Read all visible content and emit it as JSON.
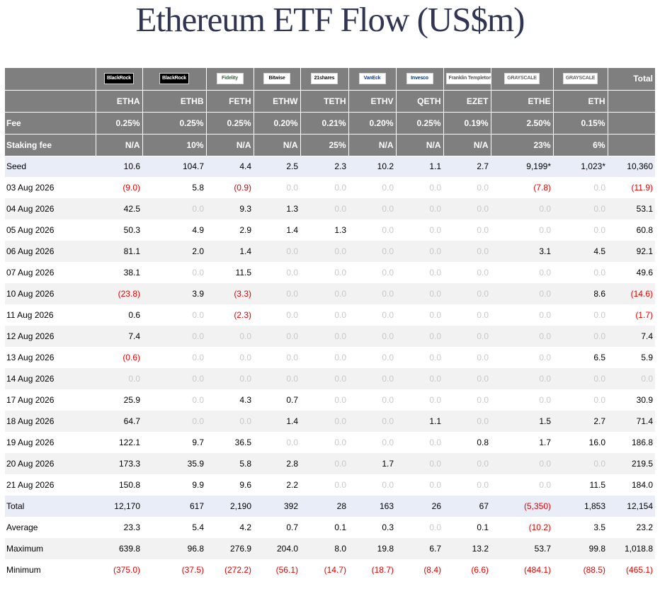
{
  "title": "Ethereum ETF Flow (US$m)",
  "header": {
    "total_label": "Total",
    "funds": [
      {
        "logo": "BlackRock",
        "logo_color": "#000000",
        "logo_text_color": "#ffffff",
        "ticker": "ETHA",
        "fee": "0.25%",
        "staking_fee": "N/A"
      },
      {
        "logo": "BlackRock",
        "logo_color": "#000000",
        "logo_text_color": "#ffffff",
        "ticker": "ETHB",
        "fee": "0.25%",
        "staking_fee": "10%"
      },
      {
        "logo": "Fidelity",
        "logo_color": "#ffffff",
        "logo_text_color": "#2e6b3a",
        "ticker": "FETH",
        "fee": "0.25%",
        "staking_fee": "N/A"
      },
      {
        "logo": "Bitwise",
        "logo_color": "#ffffff",
        "logo_text_color": "#111111",
        "ticker": "ETHW",
        "fee": "0.20%",
        "staking_fee": "N/A"
      },
      {
        "logo": "21shares",
        "logo_color": "#ffffff",
        "logo_text_color": "#111111",
        "ticker": "TETH",
        "fee": "0.21%",
        "staking_fee": "25%"
      },
      {
        "logo": "VanEck",
        "logo_color": "#ffffff",
        "logo_text_color": "#1a3c8c",
        "ticker": "ETHV",
        "fee": "0.20%",
        "staking_fee": "N/A"
      },
      {
        "logo": "Invesco",
        "logo_color": "#ffffff",
        "logo_text_color": "#003b73",
        "ticker": "QETH",
        "fee": "0.25%",
        "staking_fee": "N/A"
      },
      {
        "logo": "Franklin Templeton",
        "logo_color": "#ffffff",
        "logo_text_color": "#555555",
        "ticker": "EZET",
        "fee": "0.19%",
        "staking_fee": "N/A"
      },
      {
        "logo": "GRAYSCALE",
        "logo_color": "#ffffff",
        "logo_text_color": "#666666",
        "ticker": "ETHE",
        "fee": "2.50%",
        "staking_fee": "23%"
      },
      {
        "logo": "GRAYSCALE",
        "logo_color": "#ffffff",
        "logo_text_color": "#666666",
        "ticker": "ETH",
        "fee": "0.15%",
        "staking_fee": "6%"
      }
    ],
    "fee_label": "Fee",
    "staking_fee_label": "Staking fee"
  },
  "rows": [
    {
      "label": "Seed",
      "kind": "summary",
      "values": [
        "10.6",
        "104.7",
        "4.4",
        "2.5",
        "2.3",
        "10.2",
        "1.1",
        "2.7",
        "9,199*",
        "1,023*",
        "10,360"
      ]
    },
    {
      "label": "03 Aug 2026",
      "kind": "day",
      "values": [
        "(9.0)",
        "5.8",
        "(0.9)",
        "0.0",
        "0.0",
        "0.0",
        "0.0",
        "0.0",
        "(7.8)",
        "0.0",
        "(11.9)"
      ]
    },
    {
      "label": "04 Aug 2026",
      "kind": "day",
      "values": [
        "42.5",
        "0.0",
        "9.3",
        "1.3",
        "0.0",
        "0.0",
        "0.0",
        "0.0",
        "0.0",
        "0.0",
        "53.1"
      ]
    },
    {
      "label": "05 Aug 2026",
      "kind": "day",
      "values": [
        "50.3",
        "4.9",
        "2.9",
        "1.4",
        "1.3",
        "0.0",
        "0.0",
        "0.0",
        "0.0",
        "0.0",
        "60.8"
      ]
    },
    {
      "label": "06 Aug 2026",
      "kind": "day",
      "values": [
        "81.1",
        "2.0",
        "1.4",
        "0.0",
        "0.0",
        "0.0",
        "0.0",
        "0.0",
        "3.1",
        "4.5",
        "92.1"
      ]
    },
    {
      "label": "07 Aug 2026",
      "kind": "day",
      "values": [
        "38.1",
        "0.0",
        "11.5",
        "0.0",
        "0.0",
        "0.0",
        "0.0",
        "0.0",
        "0.0",
        "0.0",
        "49.6"
      ]
    },
    {
      "label": "10 Aug 2026",
      "kind": "day",
      "values": [
        "(23.8)",
        "3.9",
        "(3.3)",
        "0.0",
        "0.0",
        "0.0",
        "0.0",
        "0.0",
        "0.0",
        "8.6",
        "(14.6)"
      ]
    },
    {
      "label": "11 Aug 2026",
      "kind": "day",
      "values": [
        "0.6",
        "0.0",
        "(2.3)",
        "0.0",
        "0.0",
        "0.0",
        "0.0",
        "0.0",
        "0.0",
        "0.0",
        "(1.7)"
      ]
    },
    {
      "label": "12 Aug 2026",
      "kind": "day",
      "values": [
        "7.4",
        "0.0",
        "0.0",
        "0.0",
        "0.0",
        "0.0",
        "0.0",
        "0.0",
        "0.0",
        "0.0",
        "7.4"
      ]
    },
    {
      "label": "13 Aug 2026",
      "kind": "day",
      "values": [
        "(0.6)",
        "0.0",
        "0.0",
        "0.0",
        "0.0",
        "0.0",
        "0.0",
        "0.0",
        "0.0",
        "6.5",
        "5.9"
      ]
    },
    {
      "label": "14 Aug 2026",
      "kind": "day",
      "values": [
        "0.0",
        "0.0",
        "0.0",
        "0.0",
        "0.0",
        "0.0",
        "0.0",
        "0.0",
        "0.0",
        "0.0",
        "0.0"
      ]
    },
    {
      "label": "17 Aug 2026",
      "kind": "day",
      "values": [
        "25.9",
        "0.0",
        "4.3",
        "0.7",
        "0.0",
        "0.0",
        "0.0",
        "0.0",
        "0.0",
        "0.0",
        "30.9"
      ]
    },
    {
      "label": "18 Aug 2026",
      "kind": "day",
      "values": [
        "64.7",
        "0.0",
        "0.0",
        "1.4",
        "0.0",
        "0.0",
        "1.1",
        "0.0",
        "1.5",
        "2.7",
        "71.4"
      ]
    },
    {
      "label": "19 Aug 2026",
      "kind": "day",
      "values": [
        "122.1",
        "9.7",
        "36.5",
        "0.0",
        "0.0",
        "0.0",
        "0.0",
        "0.8",
        "1.7",
        "16.0",
        "186.8"
      ]
    },
    {
      "label": "20 Aug 2026",
      "kind": "day",
      "values": [
        "173.3",
        "35.9",
        "5.8",
        "2.8",
        "0.0",
        "1.7",
        "0.0",
        "0.0",
        "0.0",
        "0.0",
        "219.5"
      ]
    },
    {
      "label": "21 Aug 2026",
      "kind": "day",
      "values": [
        "150.8",
        "9.9",
        "9.6",
        "2.2",
        "0.0",
        "0.0",
        "0.0",
        "0.0",
        "0.0",
        "11.5",
        "184.0"
      ]
    },
    {
      "label": "Total",
      "kind": "summary",
      "values": [
        "12,170",
        "617",
        "2,190",
        "392",
        "28",
        "163",
        "26",
        "67",
        "(5,350)",
        "1,853",
        "12,154"
      ]
    },
    {
      "label": "Average",
      "kind": "stat",
      "values": [
        "23.3",
        "5.4",
        "4.2",
        "0.7",
        "0.1",
        "0.3",
        "0.0",
        "0.1",
        "(10.2)",
        "3.5",
        "23.2"
      ]
    },
    {
      "label": "Maximum",
      "kind": "stat",
      "values": [
        "639.8",
        "96.8",
        "276.9",
        "204.0",
        "8.0",
        "19.8",
        "6.7",
        "13.2",
        "53.7",
        "99.8",
        "1,018.8"
      ]
    },
    {
      "label": "Minimum",
      "kind": "stat",
      "values": [
        "(375.0)",
        "(37.5)",
        "(272.2)",
        "(56.1)",
        "(14.7)",
        "(18.7)",
        "(8.4)",
        "(6.6)",
        "(484.1)",
        "(88.5)",
        "(465.1)"
      ]
    }
  ]
}
